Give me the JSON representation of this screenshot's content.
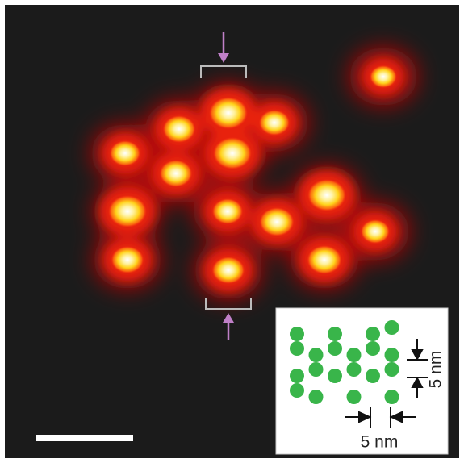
{
  "inset": {
    "vertical_scale_label": "5 nm",
    "horizontal_scale_label": "5 nm"
  }
}
